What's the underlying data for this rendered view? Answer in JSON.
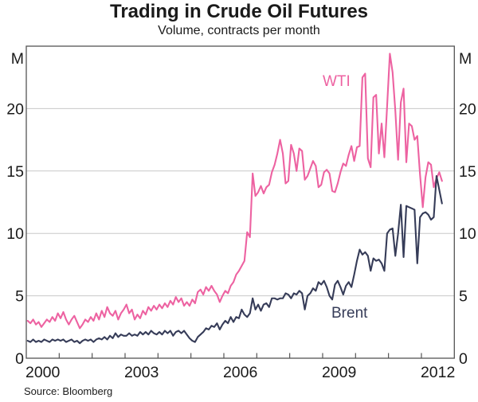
{
  "header": {
    "title": "Trading in Crude Oil Futures",
    "subtitle": "Volume, contracts per month"
  },
  "footer": {
    "source": "Source: Bloomberg"
  },
  "colors": {
    "wti_pink": "#ED62A1",
    "brent_navy": "#363C58",
    "gridline": "#C8C8C8",
    "frame": "#545454",
    "text": "#1A1A1A"
  },
  "chart_data": {
    "type": "line",
    "title": "Trading in Crude Oil Futures",
    "subtitle": "Volume, contracts per month",
    "unit_label": "M",
    "ylabel_left": "M",
    "ylabel_right": "M",
    "ylim": [
      0,
      25
    ],
    "yticks": [
      0,
      5,
      10,
      15,
      20
    ],
    "grid": "horizontal-only",
    "frequency": "monthly",
    "x_start_year": 2000,
    "x_end_year": 2013,
    "x_first_month": "2000-01",
    "x_last_month": "2012-08",
    "xtick_labels": [
      "2000",
      "2003",
      "2006",
      "2009",
      "2012"
    ],
    "xtick_label_positions": [
      2000.5,
      2003.5,
      2006.5,
      2009.5,
      2012.5
    ],
    "year_tick_marks": [
      2001,
      2002,
      2003,
      2004,
      2005,
      2006,
      2007,
      2008,
      2009,
      2010,
      2011,
      2012
    ],
    "legend_position": "inline-annotations",
    "series": [
      {
        "name": "WTI",
        "color": "#ED62A1",
        "values": [
          3.0,
          2.8,
          3.1,
          2.7,
          2.9,
          2.5,
          2.8,
          3.1,
          2.9,
          3.3,
          3.0,
          3.6,
          3.2,
          3.7,
          3.1,
          2.7,
          3.1,
          3.4,
          2.9,
          2.4,
          2.7,
          3.1,
          2.9,
          3.3,
          3.0,
          3.6,
          3.1,
          3.8,
          3.3,
          4.1,
          3.6,
          3.4,
          3.8,
          3.1,
          3.6,
          3.9,
          4.3,
          3.6,
          3.9,
          3.1,
          3.5,
          3.2,
          3.8,
          3.5,
          4.1,
          3.8,
          4.2,
          3.9,
          4.3,
          4.0,
          4.4,
          4.1,
          4.6,
          4.3,
          4.9,
          4.5,
          4.8,
          4.2,
          4.5,
          4.2,
          4.7,
          4.4,
          5.3,
          5.5,
          5.1,
          5.7,
          5.4,
          5.8,
          5.4,
          5.1,
          4.5,
          5.0,
          5.4,
          5.2,
          5.8,
          6.1,
          6.7,
          7.0,
          7.4,
          7.8,
          10.1,
          9.7,
          14.8,
          13.0,
          13.3,
          13.8,
          13.2,
          13.7,
          13.9,
          14.9,
          15.5,
          16.4,
          17.5,
          16.4,
          14.0,
          14.2,
          17.1,
          16.4,
          15.0,
          16.8,
          16.6,
          14.3,
          14.6,
          15.2,
          15.8,
          15.4,
          13.7,
          13.9,
          14.9,
          15.1,
          14.8,
          13.4,
          13.3,
          14.0,
          14.9,
          15.6,
          15.4,
          16.3,
          17.0,
          15.8,
          16.9,
          17.0,
          22.5,
          22.8,
          16.0,
          15.3,
          20.9,
          21.1,
          16.4,
          18.8,
          16.1,
          20.2,
          24.4,
          22.9,
          19.8,
          15.9,
          20.5,
          21.6,
          15.7,
          18.8,
          18.6,
          17.5,
          17.8,
          14.7,
          12.1,
          14.5,
          15.7,
          15.5,
          13.7,
          14.4,
          14.9,
          14.2
        ]
      },
      {
        "name": "Brent",
        "color": "#363C58",
        "values": [
          1.4,
          1.3,
          1.5,
          1.3,
          1.4,
          1.3,
          1.5,
          1.4,
          1.3,
          1.5,
          1.4,
          1.5,
          1.4,
          1.5,
          1.3,
          1.4,
          1.5,
          1.3,
          1.4,
          1.2,
          1.4,
          1.5,
          1.4,
          1.5,
          1.3,
          1.5,
          1.6,
          1.5,
          1.7,
          1.5,
          1.8,
          1.6,
          2.0,
          1.7,
          1.9,
          1.8,
          1.8,
          2.0,
          1.8,
          1.9,
          1.8,
          2.1,
          1.9,
          2.1,
          1.9,
          2.2,
          2.0,
          1.9,
          2.1,
          1.9,
          2.2,
          2.0,
          2.2,
          1.8,
          2.1,
          2.2,
          2.0,
          2.2,
          1.9,
          1.6,
          1.4,
          1.3,
          1.7,
          1.9,
          2.1,
          2.4,
          2.3,
          2.6,
          2.5,
          2.8,
          2.3,
          2.7,
          3.0,
          2.8,
          3.3,
          2.9,
          3.3,
          3.2,
          3.9,
          3.5,
          3.3,
          3.6,
          4.8,
          3.9,
          4.3,
          3.8,
          4.3,
          4.4,
          4.1,
          4.8,
          4.8,
          4.7,
          4.8,
          4.8,
          5.2,
          5.1,
          4.8,
          5.2,
          5.1,
          5.4,
          5.2,
          3.9,
          5.0,
          5.2,
          5.6,
          5.4,
          6.1,
          5.9,
          6.2,
          5.7,
          5.0,
          4.7,
          5.9,
          6.2,
          5.7,
          5.1,
          5.8,
          6.1,
          5.7,
          6.7,
          7.8,
          8.7,
          8.3,
          8.5,
          8.2,
          7.0,
          8.0,
          7.8,
          7.9,
          7.6,
          7.0,
          10.0,
          10.3,
          10.4,
          8.2,
          10.0,
          12.3,
          8.1,
          12.2,
          12.1,
          12.0,
          11.9,
          7.6,
          11.3,
          11.6,
          11.7,
          11.5,
          11.1,
          11.3,
          14.6,
          13.5,
          12.4
        ]
      }
    ]
  }
}
